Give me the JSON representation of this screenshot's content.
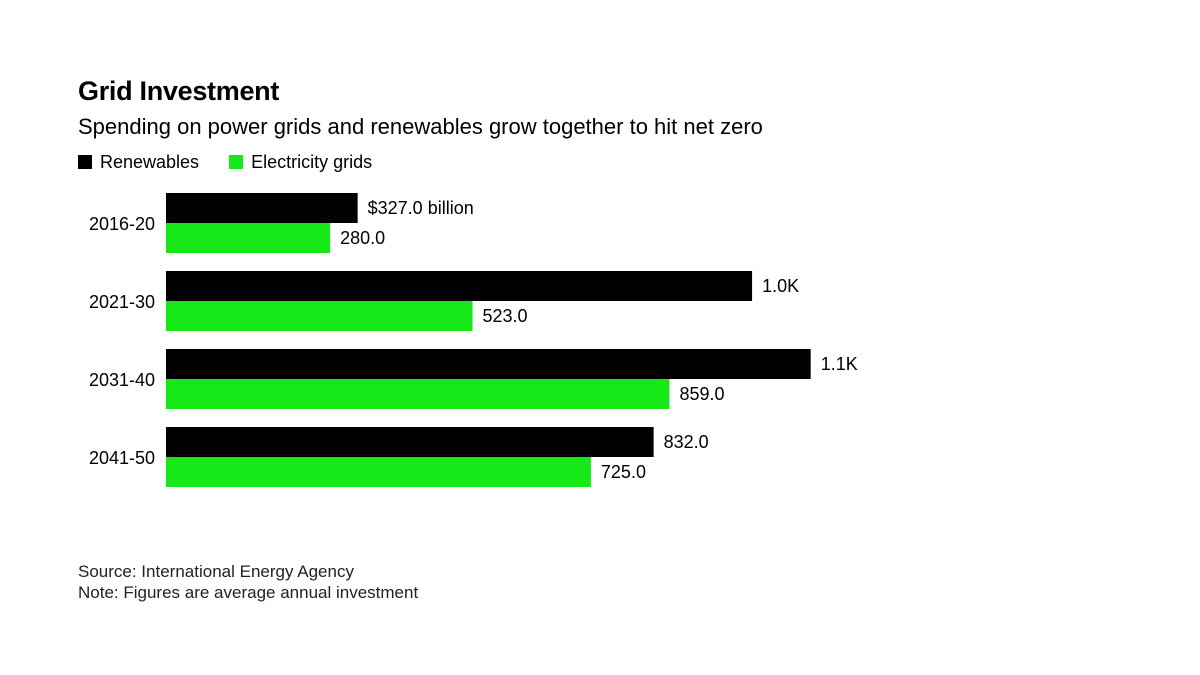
{
  "header": {
    "title": "Grid Investment",
    "subtitle": "Spending on power grids and renewables grow together to hit net zero"
  },
  "legend": [
    {
      "label": "Renewables",
      "color": "#000000"
    },
    {
      "label": "Electricity grids",
      "color": "#17e817"
    }
  ],
  "chart_data": {
    "type": "bar",
    "orientation": "horizontal",
    "title": "Grid Investment",
    "subtitle": "Spending on power grids and renewables grow together to hit net zero",
    "categories": [
      "2016-20",
      "2021-30",
      "2031-40",
      "2041-50"
    ],
    "series": [
      {
        "name": "Renewables",
        "color": "#000000",
        "values": [
          327.0,
          1000.0,
          1100.0,
          832.0
        ],
        "labels": [
          "$327.0 billion",
          "1.0K",
          "1.1K",
          "832.0"
        ]
      },
      {
        "name": "Electricity grids",
        "color": "#17e817",
        "values": [
          280.0,
          523.0,
          859.0,
          725.0
        ],
        "labels": [
          "280.0",
          "523.0",
          "859.0",
          "725.0"
        ]
      }
    ],
    "xlim": [
      0,
      1150
    ],
    "grid": false,
    "legend_position": "top-left"
  },
  "footer": {
    "source": "Source: International Energy Agency",
    "note": "Note: Figures are average annual investment"
  }
}
